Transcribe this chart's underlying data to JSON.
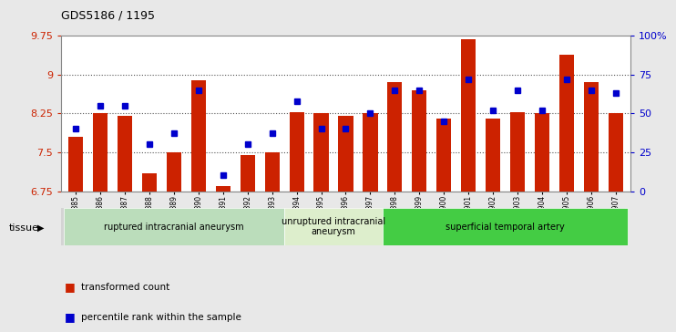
{
  "title": "GDS5186 / 1195",
  "samples": [
    "GSM1306885",
    "GSM1306886",
    "GSM1306887",
    "GSM1306888",
    "GSM1306889",
    "GSM1306890",
    "GSM1306891",
    "GSM1306892",
    "GSM1306893",
    "GSM1306894",
    "GSM1306895",
    "GSM1306896",
    "GSM1306897",
    "GSM1306898",
    "GSM1306899",
    "GSM1306900",
    "GSM1306901",
    "GSM1306902",
    "GSM1306903",
    "GSM1306904",
    "GSM1306905",
    "GSM1306906",
    "GSM1306907"
  ],
  "bar_values": [
    7.8,
    8.25,
    8.2,
    7.1,
    7.5,
    8.88,
    6.85,
    7.45,
    7.5,
    8.28,
    8.25,
    8.2,
    8.25,
    8.85,
    8.7,
    8.15,
    9.68,
    8.15,
    8.28,
    8.25,
    9.38,
    8.85,
    8.25
  ],
  "percentile_values": [
    40,
    55,
    55,
    30,
    37,
    65,
    10,
    30,
    37,
    58,
    40,
    40,
    50,
    65,
    65,
    45,
    72,
    52,
    65,
    52,
    72,
    65,
    63
  ],
  "ylim_min": 6.75,
  "ylim_max": 9.75,
  "yticks": [
    6.75,
    7.5,
    8.25,
    9.0,
    9.75
  ],
  "ytick_labels": [
    "6.75",
    "7.5",
    "8.25",
    "9",
    "9.75"
  ],
  "right_yticks": [
    0,
    25,
    50,
    75,
    100
  ],
  "right_ytick_labels": [
    "0",
    "25",
    "50",
    "75",
    "100%"
  ],
  "bar_color": "#cc2200",
  "dot_color": "#0000cc",
  "background_color": "#e8e8e8",
  "plot_bg_color": "#ffffff",
  "xticklabel_bg": "#d4d4d4",
  "groups": [
    {
      "label": "ruptured intracranial aneurysm",
      "start": 0,
      "end": 9,
      "color": "#bbddbb"
    },
    {
      "label": "unruptured intracranial\naneurysm",
      "start": 9,
      "end": 13,
      "color": "#ddeecc"
    },
    {
      "label": "superficial temporal artery",
      "start": 13,
      "end": 23,
      "color": "#44cc44"
    }
  ],
  "tissue_label": "tissue",
  "legend_bar_label": "transformed count",
  "legend_dot_label": "percentile rank within the sample",
  "grid_color": "#555555",
  "spine_color": "#888888"
}
